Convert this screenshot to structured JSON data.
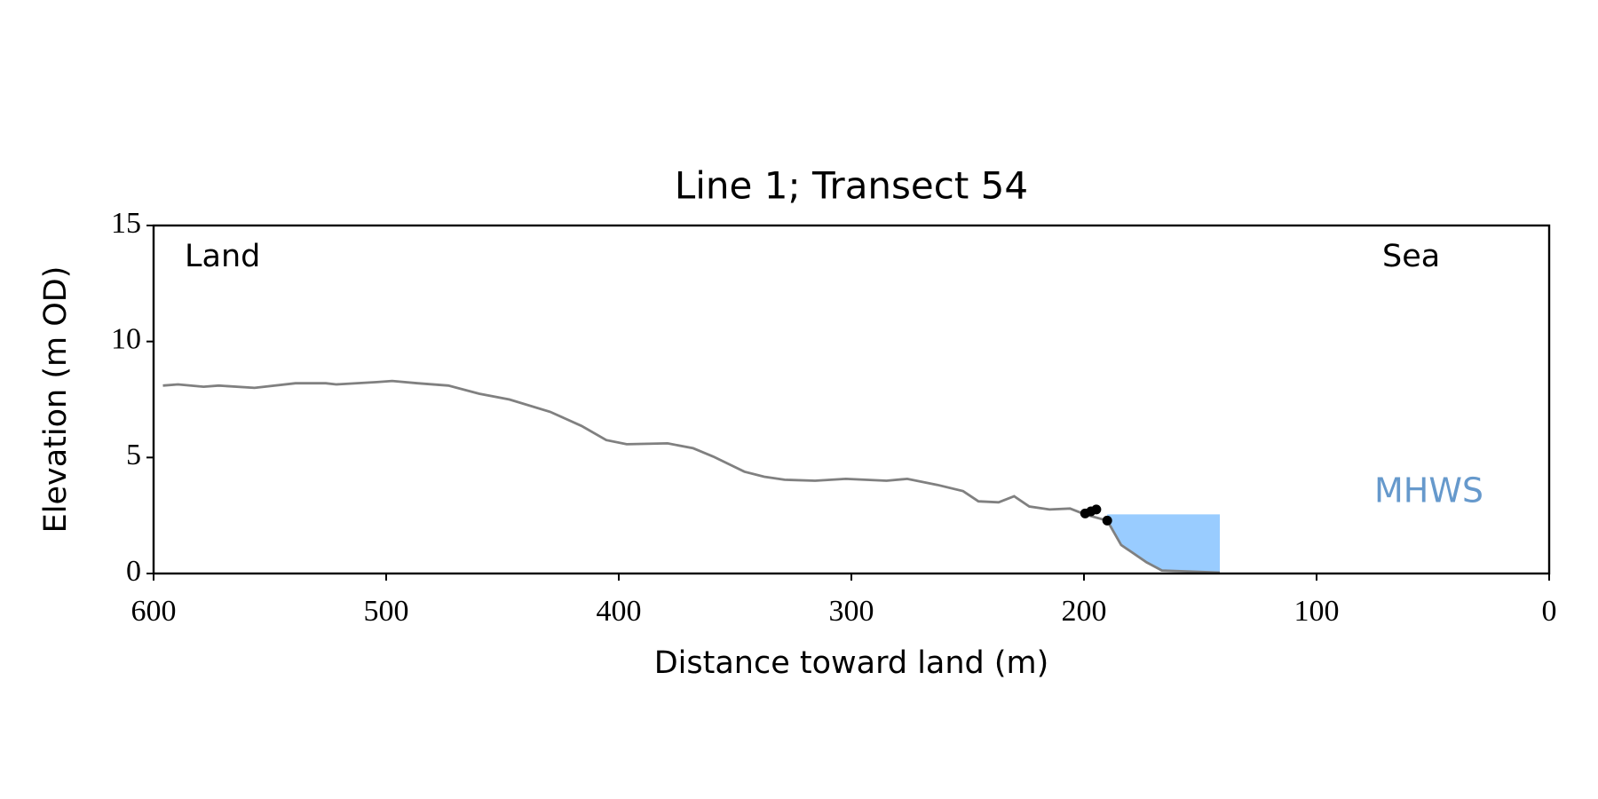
{
  "chart_data": {
    "type": "line",
    "title": "Line 1; Transect 54",
    "xlabel": "Distance toward land (m)",
    "ylabel": "Elevation (m OD)",
    "xlim": [
      600,
      0
    ],
    "xticks": [
      600,
      500,
      400,
      300,
      200,
      100,
      0
    ],
    "ylim": [
      0,
      15
    ],
    "yticks": [
      0,
      5,
      10,
      15
    ],
    "grid": false,
    "series": [
      {
        "color": "#808080",
        "x": [
          596,
          589.5,
          578.5,
          572,
          556.6,
          539,
          526,
          521.5,
          504,
          497.4,
          486.5,
          473.3,
          460,
          447,
          429.5,
          416,
          405.4,
          396.6,
          379,
          368,
          359.4,
          346,
          337.5,
          328.7,
          315.6,
          302.4,
          284.9,
          276,
          263,
          252,
          245.4,
          236.7,
          230,
          223.5,
          214.8,
          206,
          199.4,
          190,
          184,
          173,
          166.5,
          155.6,
          141.6
        ],
        "values": [
          8.1,
          8.15,
          8.05,
          8.1,
          8.0,
          8.2,
          8.2,
          8.15,
          8.25,
          8.3,
          8.2,
          8.1,
          7.75,
          7.5,
          6.97,
          6.36,
          5.75,
          5.57,
          5.61,
          5.4,
          5.04,
          4.39,
          4.17,
          4.04,
          4.0,
          4.08,
          4.0,
          4.08,
          3.82,
          3.55,
          3.11,
          3.07,
          3.33,
          2.89,
          2.76,
          2.8,
          2.54,
          2.28,
          1.23,
          0.48,
          0.13,
          0.09,
          0.04
        ]
      }
    ],
    "points": {
      "color": "#000000",
      "x": [
        199.5,
        197,
        194.7,
        190
      ],
      "values": [
        2.59,
        2.68,
        2.76,
        2.28
      ]
    },
    "mhws": {
      "label": "MHWS",
      "value": 2.55,
      "xrange": [
        190,
        141.6
      ],
      "color": "#99ccff",
      "label_color": "#6699cc"
    },
    "annotations": [
      "Land",
      "Sea"
    ]
  }
}
